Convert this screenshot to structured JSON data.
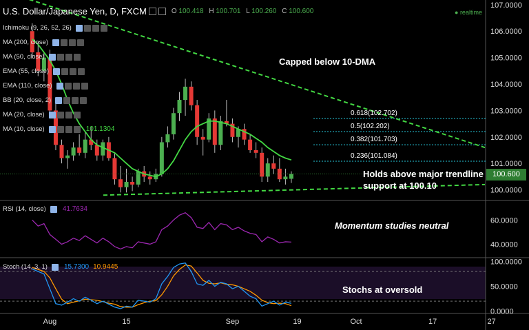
{
  "header": {
    "title": "U.S. Dollar/Japanese Yen, D, FXCM",
    "open_label": "O",
    "open": "100.418",
    "high_label": "H",
    "high": "100.701",
    "low_label": "L",
    "low": "100.260",
    "close_label": "C",
    "close": "100.600",
    "realtime": "realtime"
  },
  "indicators": [
    {
      "label": "Ichimoku (9, 26, 52, 26)",
      "value": ""
    },
    {
      "label": "MA (200, close)",
      "value": ""
    },
    {
      "label": "MA (50, close)",
      "value": ""
    },
    {
      "label": "EMA (55, close)",
      "value": ""
    },
    {
      "label": "EMA (110, close)",
      "value": ""
    },
    {
      "label": "BB (20, close, 2)",
      "value": ""
    },
    {
      "label": "MA (20, close)",
      "value": ""
    },
    {
      "label": "MA (10, close)",
      "value": "101.1304"
    }
  ],
  "annotations": {
    "capped": "Capped below 10-DMA",
    "holds_line1": "Holds above major trendline",
    "holds_line2": "support at 100.10",
    "momentum": "Momentum studies neutral",
    "stochs": "Stochs at oversold"
  },
  "fib_levels": [
    {
      "label": "0.618(102.702)",
      "value": 102.702
    },
    {
      "label": "0.5(102.202)",
      "value": 102.202
    },
    {
      "label": "0.382(101.703)",
      "value": 101.703
    },
    {
      "label": "0.236(101.084)",
      "value": 101.084
    }
  ],
  "rsi_label": "RSI (14, close)",
  "rsi_value": "41.7634",
  "stoch_label": "Stoch (14, 3, 1)",
  "stoch_k_value": "15.7300",
  "stoch_d_value": "10.9445",
  "last_price": "100.600",
  "colors": {
    "bull": "#4caf50",
    "bear": "#e53935",
    "ma": "#43d843",
    "trend": "#43d843",
    "rsi": "#9c27b0",
    "stoch_k": "#2196f3",
    "stoch_d": "#ff9800"
  },
  "chart_data": {
    "type": "candlestick",
    "price_axis": {
      "ylim": [
        99.65,
        107.1
      ],
      "ticks": [
        100.0,
        101.0,
        102.0,
        103.0,
        104.0,
        105.0,
        106.0,
        107.0
      ],
      "tick_labels": [
        "100.0000",
        "101.0000",
        "102.0000",
        "103.0000",
        "104.0000",
        "105.0000",
        "106.0000",
        "107.0000"
      ]
    },
    "x_ticks": [
      {
        "label": "Aug",
        "day": 8
      },
      {
        "label": "15",
        "day": 21
      },
      {
        "label": "Sep",
        "day": 39
      },
      {
        "label": "19",
        "day": 50
      },
      {
        "label": "Oct",
        "day": 60
      },
      {
        "label": "17",
        "day": 73
      },
      {
        "label": "27",
        "day": 83
      }
    ],
    "candles": [
      {
        "o": 106.0,
        "h": 106.3,
        "l": 105.0,
        "c": 105.2
      },
      {
        "o": 105.2,
        "h": 105.6,
        "l": 104.3,
        "c": 104.5
      },
      {
        "o": 104.5,
        "h": 105.2,
        "l": 104.1,
        "c": 105.0
      },
      {
        "o": 105.0,
        "h": 105.3,
        "l": 102.8,
        "c": 103.0
      },
      {
        "o": 103.0,
        "h": 103.4,
        "l": 101.5,
        "c": 101.7
      },
      {
        "o": 101.7,
        "h": 101.9,
        "l": 101.0,
        "c": 101.2
      },
      {
        "o": 101.2,
        "h": 101.5,
        "l": 100.8,
        "c": 101.3
      },
      {
        "o": 101.3,
        "h": 101.8,
        "l": 101.1,
        "c": 101.6
      },
      {
        "o": 101.6,
        "h": 102.1,
        "l": 101.3,
        "c": 101.4
      },
      {
        "o": 101.4,
        "h": 102.2,
        "l": 101.2,
        "c": 101.9
      },
      {
        "o": 101.9,
        "h": 102.4,
        "l": 101.5,
        "c": 101.7
      },
      {
        "o": 101.7,
        "h": 101.9,
        "l": 101.1,
        "c": 101.3
      },
      {
        "o": 101.3,
        "h": 101.9,
        "l": 101.1,
        "c": 101.8
      },
      {
        "o": 101.8,
        "h": 102.0,
        "l": 101.1,
        "c": 101.2
      },
      {
        "o": 101.2,
        "h": 101.4,
        "l": 100.2,
        "c": 100.4
      },
      {
        "o": 100.4,
        "h": 100.9,
        "l": 99.9,
        "c": 100.1
      },
      {
        "o": 100.1,
        "h": 100.8,
        "l": 99.9,
        "c": 100.3
      },
      {
        "o": 100.3,
        "h": 100.5,
        "l": 99.95,
        "c": 100.2
      },
      {
        "o": 100.2,
        "h": 100.8,
        "l": 100.1,
        "c": 100.7
      },
      {
        "o": 100.7,
        "h": 100.9,
        "l": 100.3,
        "c": 100.5
      },
      {
        "o": 100.5,
        "h": 100.7,
        "l": 100.2,
        "c": 100.4
      },
      {
        "o": 100.4,
        "h": 100.8,
        "l": 100.3,
        "c": 100.6
      },
      {
        "o": 100.6,
        "h": 102.0,
        "l": 100.5,
        "c": 101.8
      },
      {
        "o": 101.8,
        "h": 102.4,
        "l": 101.6,
        "c": 102.1
      },
      {
        "o": 102.1,
        "h": 103.1,
        "l": 101.9,
        "c": 102.9
      },
      {
        "o": 102.9,
        "h": 103.7,
        "l": 102.6,
        "c": 103.4
      },
      {
        "o": 103.4,
        "h": 104.2,
        "l": 102.8,
        "c": 103.9
      },
      {
        "o": 103.9,
        "h": 104.1,
        "l": 103.0,
        "c": 103.2
      },
      {
        "o": 103.2,
        "h": 103.4,
        "l": 101.7,
        "c": 102.0
      },
      {
        "o": 102.0,
        "h": 102.3,
        "l": 101.3,
        "c": 101.9
      },
      {
        "o": 101.9,
        "h": 102.9,
        "l": 101.8,
        "c": 102.7
      },
      {
        "o": 102.7,
        "h": 103.0,
        "l": 101.4,
        "c": 101.7
      },
      {
        "o": 101.7,
        "h": 102.8,
        "l": 101.5,
        "c": 102.6
      },
      {
        "o": 102.6,
        "h": 103.4,
        "l": 102.4,
        "c": 102.5
      },
      {
        "o": 102.5,
        "h": 102.7,
        "l": 101.8,
        "c": 102.0
      },
      {
        "o": 102.0,
        "h": 102.4,
        "l": 101.6,
        "c": 102.3
      },
      {
        "o": 102.3,
        "h": 102.5,
        "l": 101.7,
        "c": 101.9
      },
      {
        "o": 101.9,
        "h": 102.1,
        "l": 101.4,
        "c": 101.5
      },
      {
        "o": 101.5,
        "h": 101.8,
        "l": 101.2,
        "c": 101.4
      },
      {
        "o": 101.4,
        "h": 101.6,
        "l": 100.3,
        "c": 100.5
      },
      {
        "o": 100.5,
        "h": 101.2,
        "l": 100.3,
        "c": 101.0
      },
      {
        "o": 101.0,
        "h": 101.3,
        "l": 100.6,
        "c": 100.8
      },
      {
        "o": 100.8,
        "h": 101.2,
        "l": 100.3,
        "c": 100.4
      },
      {
        "o": 100.4,
        "h": 100.8,
        "l": 100.2,
        "c": 100.5
      },
      {
        "o": 100.418,
        "h": 100.701,
        "l": 100.26,
        "c": 100.6
      }
    ],
    "ma10": [
      105.7,
      105.5,
      105.2,
      104.9,
      104.5,
      104.0,
      103.4,
      102.9,
      102.5,
      102.2,
      101.9,
      101.7,
      101.6,
      101.5,
      101.4,
      101.2,
      101.0,
      100.8,
      100.7,
      100.6,
      100.55,
      100.5,
      100.6,
      100.8,
      101.1,
      101.5,
      101.9,
      102.2,
      102.4,
      102.5,
      102.6,
      102.6,
      102.55,
      102.5,
      102.4,
      102.3,
      102.2,
      102.1,
      101.95,
      101.8,
      101.6,
      101.45,
      101.3,
      101.2,
      101.13
    ],
    "rsi": {
      "ylim": [
        30,
        75
      ],
      "ticks": [
        40,
        60
      ],
      "tick_labels": [
        "40.0000",
        "60.0000"
      ],
      "values": [
        60,
        55,
        57,
        48,
        44,
        40,
        42,
        45,
        43,
        47,
        44,
        41,
        45,
        42,
        38,
        36,
        38,
        37,
        42,
        41,
        40,
        42,
        52,
        55,
        60,
        64,
        66,
        62,
        54,
        53,
        58,
        52,
        57,
        56,
        52,
        54,
        51,
        49,
        48,
        42,
        46,
        44,
        41,
        42,
        41.76
      ]
    },
    "stoch": {
      "ylim": [
        -2,
        105
      ],
      "ticks": [
        0,
        50,
        100
      ],
      "tick_labels": [
        "0.0000",
        "50.0000",
        "100.0000"
      ],
      "k": [
        85,
        80,
        75,
        45,
        15,
        12,
        18,
        25,
        20,
        28,
        22,
        15,
        20,
        14,
        8,
        5,
        10,
        8,
        22,
        20,
        18,
        25,
        55,
        70,
        88,
        95,
        97,
        80,
        55,
        52,
        62,
        50,
        58,
        55,
        45,
        50,
        40,
        30,
        25,
        10,
        15,
        20,
        12,
        18,
        15.73
      ],
      "d": [
        88,
        84,
        80,
        67,
        45,
        24,
        15,
        18,
        21,
        24,
        23,
        22,
        19,
        16,
        14,
        9,
        8,
        8,
        13,
        17,
        20,
        21,
        33,
        50,
        71,
        84,
        93,
        91,
        77,
        62,
        56,
        55,
        57,
        54,
        53,
        50,
        45,
        40,
        32,
        22,
        17,
        15,
        16,
        15,
        10.94
      ]
    }
  }
}
